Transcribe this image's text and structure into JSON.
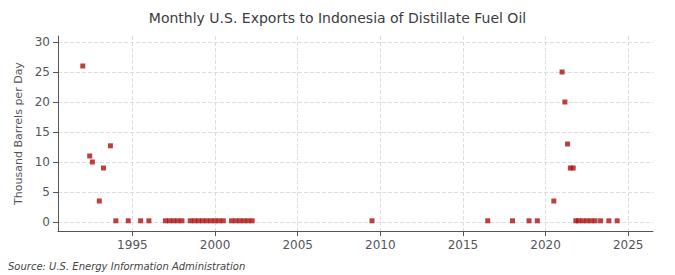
{
  "chart_data": {
    "type": "scatter",
    "title": "Monthly U.S. Exports to Indonesia of Distillate Fuel Oil",
    "ylabel": "Thousand Barrels per Day",
    "annotations": [
      "Source: U.S. Energy Information Administration"
    ],
    "color": "#aa1111",
    "marker": "square",
    "grid": true,
    "xlim": [
      1990.5,
      2026.5
    ],
    "ylim": [
      -1.5,
      31
    ],
    "xticks": [
      1995,
      2000,
      2005,
      2010,
      2015,
      2020,
      2025
    ],
    "yticks": [
      0,
      5,
      10,
      15,
      20,
      25,
      30
    ],
    "x": [
      1992.0,
      1992.42,
      1992.58,
      1993.0,
      1993.25,
      1993.67,
      1994.0,
      1994.75,
      1995.5,
      1996.0,
      1997.0,
      1997.25,
      1997.5,
      1997.75,
      1998.0,
      1998.5,
      1998.75,
      1999.0,
      1999.25,
      1999.5,
      1999.75,
      2000.0,
      2000.25,
      2000.5,
      2001.0,
      2001.25,
      2001.5,
      2001.75,
      2002.0,
      2002.25,
      2009.5,
      2016.5,
      2018.0,
      2019.0,
      2019.5,
      2020.5,
      2021.0,
      2021.17,
      2021.33,
      2021.5,
      2021.67,
      2021.83,
      2022.0,
      2022.25,
      2022.5,
      2022.75,
      2023.0,
      2023.33,
      2023.83,
      2024.33
    ],
    "values": [
      26.0,
      11.0,
      10.0,
      3.5,
      9.0,
      12.7,
      0.2,
      0.2,
      0.2,
      0.2,
      0.2,
      0.2,
      0.2,
      0.2,
      0.2,
      0.2,
      0.2,
      0.2,
      0.2,
      0.2,
      0.2,
      0.2,
      0.2,
      0.2,
      0.2,
      0.2,
      0.2,
      0.2,
      0.2,
      0.2,
      0.2,
      0.2,
      0.2,
      0.2,
      0.2,
      3.5,
      25.0,
      20.0,
      13.0,
      9.0,
      9.0,
      0.2,
      0.2,
      0.2,
      0.2,
      0.2,
      0.2,
      0.2,
      0.2,
      0.2
    ]
  }
}
